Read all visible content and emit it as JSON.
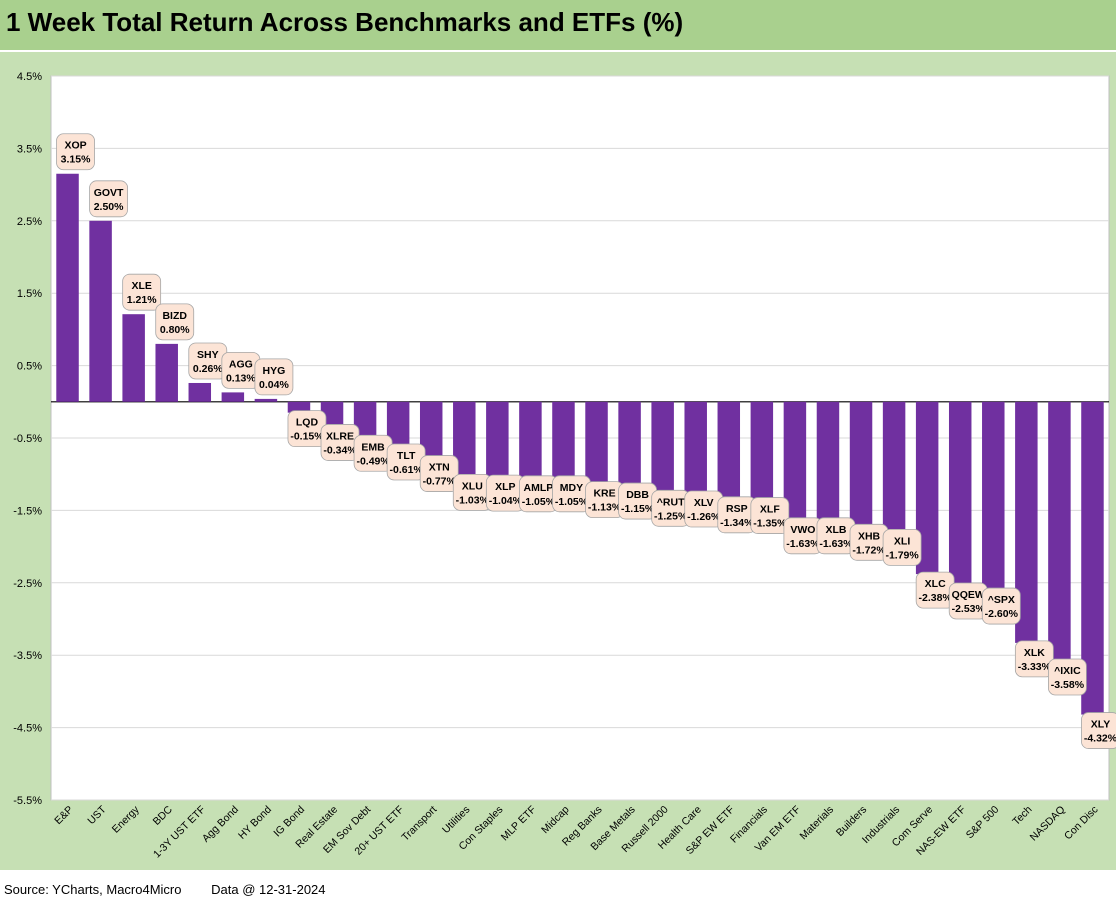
{
  "chart_data": {
    "type": "bar",
    "title": "1 Week Total Return Across Benchmarks and ETFs (%)",
    "xlabel": "",
    "ylabel": "",
    "ylim": [
      -5.5,
      4.5
    ],
    "yticks": [
      "4.5%",
      "3.5%",
      "2.5%",
      "1.5%",
      "0.5%",
      "-0.5%",
      "-1.5%",
      "-2.5%",
      "-3.5%",
      "-4.5%",
      "-5.5%"
    ],
    "grid": true,
    "legend": "none",
    "bar_color": "#7030a0",
    "label_bg": "#fce4d6",
    "categories": [
      "E&P",
      "UST",
      "Energy",
      "BDC",
      "1-3Y UST ETF",
      "Agg Bond",
      "HY Bond",
      "IG Bond",
      "Real Estate",
      "EM Sov Debt",
      "20+ UST ETF",
      "Transport",
      "Utilities",
      "Con Staples",
      "MLP ETF",
      "Midcap",
      "Reg Banks",
      "Base Metals",
      "Russell 2000",
      "Health Care",
      "S&P EW ETF",
      "Financials",
      "Van EM ETF",
      "Materials",
      "Builders",
      "Industrials",
      "Com Serve",
      "NAS-EW ETF",
      "S&P 500",
      "Tech",
      "NASDAQ",
      "Con Disc"
    ],
    "tickers": [
      "XOP",
      "GOVT",
      "XLE",
      "BIZD",
      "SHY",
      "AGG",
      "HYG",
      "LQD",
      "XLRE",
      "EMB",
      "TLT",
      "XTN",
      "XLU",
      "XLP",
      "AMLP",
      "MDY",
      "KRE",
      "DBB",
      "^RUT",
      "XLV",
      "RSP",
      "XLF",
      "VWO",
      "XLB",
      "XHB",
      "XLI",
      "XLC",
      "QQEW",
      "^SPX",
      "XLK",
      "^IXIC",
      "XLY"
    ],
    "values": [
      3.15,
      2.5,
      1.21,
      0.8,
      0.26,
      0.13,
      0.04,
      -0.15,
      -0.34,
      -0.49,
      -0.61,
      -0.77,
      -1.03,
      -1.04,
      -1.05,
      -1.05,
      -1.13,
      -1.15,
      -1.25,
      -1.26,
      -1.34,
      -1.35,
      -1.63,
      -1.63,
      -1.72,
      -1.79,
      -2.38,
      -2.53,
      -2.6,
      -3.33,
      -3.58,
      -4.32
    ],
    "value_labels": [
      "3.15%",
      "2.50%",
      "1.21%",
      "0.80%",
      "0.26%",
      "0.13%",
      "0.04%",
      "-0.15%",
      "-0.34%",
      "-0.49%",
      "-0.61%",
      "-0.77%",
      "-1.03%",
      "-1.04%",
      "-1.05%",
      "-1.05%",
      "-1.13%",
      "-1.15%",
      "-1.25%",
      "-1.26%",
      "-1.34%",
      "-1.35%",
      "-1.63%",
      "-1.63%",
      "-1.72%",
      "-1.79%",
      "-2.38%",
      "-2.53%",
      "-2.60%",
      "-3.33%",
      "-3.58%",
      "-4.32%"
    ]
  },
  "footer": {
    "source": "Source: YCharts, Macro4Micro",
    "date": "Data @ 12-31-2024"
  }
}
